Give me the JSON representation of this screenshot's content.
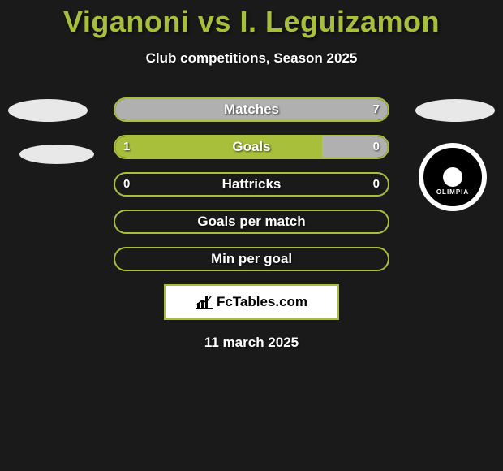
{
  "colors": {
    "background": "#1a1a1a",
    "accent": "#a7bf3b",
    "fill_right": "#b0b0b0",
    "text": "#ffffff",
    "ellipse": "#e8e8e8"
  },
  "header": {
    "title": "Viganoni vs I. Leguizamon",
    "subtitle": "Club competitions, Season 2025"
  },
  "stats": {
    "rows": [
      {
        "label": "Matches",
        "left": "",
        "right": "7",
        "left_pct": 0,
        "right_pct": 100
      },
      {
        "label": "Goals",
        "left": "1",
        "right": "0",
        "left_pct": 76,
        "right_pct": 24
      },
      {
        "label": "Hattricks",
        "left": "0",
        "right": "0",
        "left_pct": 0,
        "right_pct": 0
      },
      {
        "label": "Goals per match",
        "left": "",
        "right": "",
        "left_pct": 0,
        "right_pct": 0
      },
      {
        "label": "Min per goal",
        "left": "",
        "right": "",
        "left_pct": 0,
        "right_pct": 0
      }
    ]
  },
  "branding": {
    "text": "FcTables.com"
  },
  "right_club": {
    "label": "OLIMPIA"
  },
  "footer": {
    "date": "11 march 2025"
  }
}
